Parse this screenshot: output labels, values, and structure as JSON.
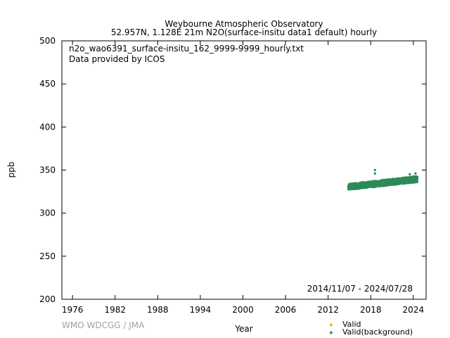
{
  "title": {
    "line1": "Weybourne Atmospheric Observatory",
    "line2": "52.957N, 1.128E 21m    N2O(surface-insitu data1 default) hourly"
  },
  "annotation": {
    "filename": "n2o_wao6391_surface-insitu_162_9999-9999_hourly.txt",
    "provider": "Data provided by ICOS",
    "date_range": "2014/11/07 - 2024/07/28"
  },
  "credit": "WMO WDCGG / JMA",
  "colors": {
    "valid": "#e6b800",
    "background": "#2e8b57",
    "credit": "#a0a0a0"
  },
  "chart_data": {
    "type": "scatter",
    "xlabel": "Year",
    "ylabel": "ppb",
    "xlim": [
      1974.5,
      2025.8
    ],
    "ylim": [
      200,
      500
    ],
    "xticks": [
      1976,
      1982,
      1988,
      1994,
      2000,
      2006,
      2012,
      2018,
      2024
    ],
    "yticks": [
      200,
      250,
      300,
      350,
      400,
      450,
      500
    ],
    "grid": false,
    "legend": "bottom-right",
    "series": [
      {
        "name": "Valid",
        "color": "#e6b800",
        "points": []
      },
      {
        "name": "Valid(background)",
        "color": "#2e8b57",
        "x_start": 2014.85,
        "x_end": 2024.57,
        "trend_start": 330,
        "trend_end": 339,
        "spread_low": 3,
        "spread_high": 4,
        "spikes": [
          [
            2018.6,
            350
          ],
          [
            2018.6,
            346
          ],
          [
            2023.5,
            345
          ],
          [
            2024.3,
            346
          ]
        ]
      }
    ]
  }
}
